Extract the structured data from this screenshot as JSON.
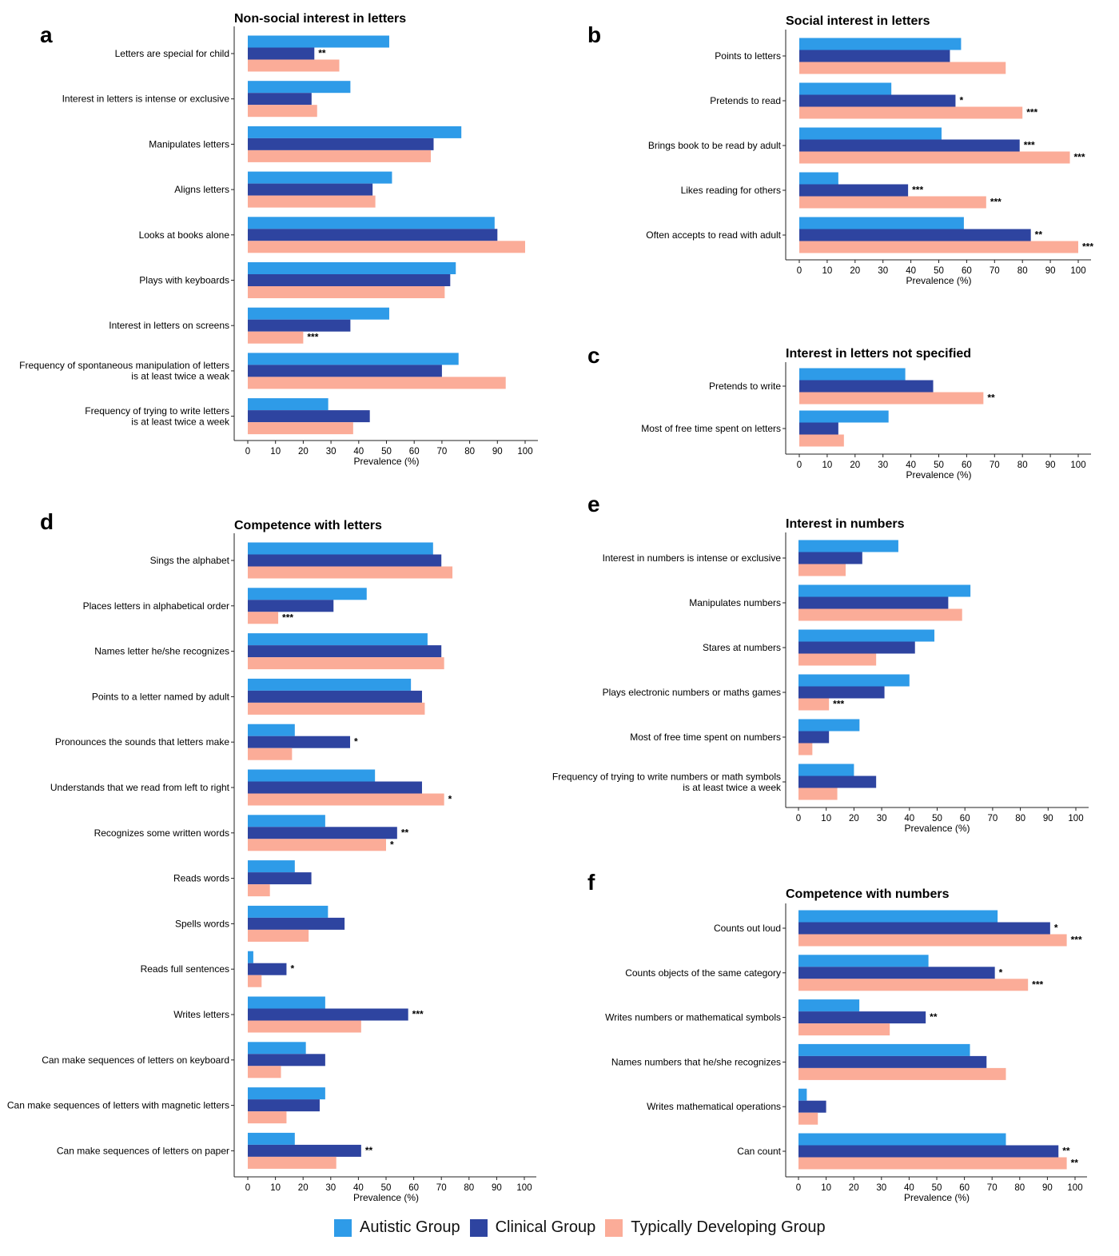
{
  "chart_data": [
    {
      "type": "bar",
      "panel": "a",
      "title": "Non-social interest in letters",
      "xlabel": "Prevalence (%)",
      "xlim": [
        0,
        100
      ],
      "xticks": [
        "0",
        "10",
        "20",
        "30",
        "40",
        "50",
        "60",
        "70",
        "80",
        "90",
        "100"
      ],
      "categories": [
        "Letters are special for child",
        "Interest in letters is intense or exclusive",
        "Manipulates letters",
        "Aligns letters",
        "Looks at books alone",
        "Plays with keyboards",
        "Interest in letters on screens",
        "Frequency of spontaneous manipulation of letters\nis at least twice a weak",
        "Frequency of trying to write letters\nis at least twice a week"
      ],
      "series": [
        {
          "name": "Autistic Group",
          "values": [
            51,
            37,
            77,
            52,
            89,
            75,
            51,
            76,
            29
          ],
          "sig": [
            "",
            "",
            "",
            "",
            "",
            "",
            "",
            "",
            ""
          ]
        },
        {
          "name": "Clinical Group",
          "values": [
            24,
            23,
            67,
            45,
            90,
            73,
            37,
            70,
            44
          ],
          "sig": [
            "**",
            "",
            "",
            "",
            "",
            "",
            "",
            "",
            ""
          ]
        },
        {
          "name": "Typically Developing Group",
          "values": [
            33,
            25,
            66,
            46,
            100,
            71,
            20,
            93,
            38
          ],
          "sig": [
            "",
            "",
            "",
            "",
            "",
            "",
            "***",
            "",
            ""
          ]
        }
      ]
    },
    {
      "type": "bar",
      "panel": "b",
      "title": "Social interest in letters",
      "xlabel": "Prevalence (%)",
      "xlim": [
        0,
        100
      ],
      "xticks": [
        "0",
        "10",
        "20",
        "30",
        "40",
        "50",
        "60",
        "70",
        "80",
        "90",
        "100"
      ],
      "categories": [
        "Points to letters",
        "Pretends to read",
        "Brings book to be read by adult",
        "Likes reading for others",
        "Often accepts to read with adult"
      ],
      "series": [
        {
          "name": "Autistic Group",
          "values": [
            58,
            33,
            51,
            14,
            59
          ],
          "sig": [
            "",
            "",
            "",
            "",
            ""
          ]
        },
        {
          "name": "Clinical Group",
          "values": [
            54,
            56,
            79,
            39,
            83
          ],
          "sig": [
            "",
            "*",
            "***",
            "***",
            "**"
          ]
        },
        {
          "name": "Typically Developing Group",
          "values": [
            74,
            80,
            97,
            67,
            100
          ],
          "sig": [
            "",
            "***",
            "***",
            "***",
            "***"
          ]
        }
      ]
    },
    {
      "type": "bar",
      "panel": "c",
      "title": "Interest in letters not specified",
      "xlabel": "Prevalence (%)",
      "xlim": [
        0,
        100
      ],
      "xticks": [
        "0",
        "10",
        "20",
        "30",
        "40",
        "50",
        "60",
        "70",
        "80",
        "90",
        "100"
      ],
      "categories": [
        "Pretends to write",
        "Most of free time spent on letters"
      ],
      "series": [
        {
          "name": "Autistic Group",
          "values": [
            38,
            32
          ],
          "sig": [
            "",
            ""
          ]
        },
        {
          "name": "Clinical Group",
          "values": [
            48,
            14
          ],
          "sig": [
            "",
            ""
          ]
        },
        {
          "name": "Typically Developing Group",
          "values": [
            66,
            16
          ],
          "sig": [
            "**",
            ""
          ]
        }
      ]
    },
    {
      "type": "bar",
      "panel": "d",
      "title": "Competence with letters",
      "xlabel": "Prevalence (%)",
      "xlim": [
        0,
        100
      ],
      "xticks": [
        "0",
        "10",
        "20",
        "30",
        "40",
        "50",
        "60",
        "70",
        "80",
        "90",
        "100"
      ],
      "categories": [
        "Sings the alphabet",
        "Places letters in alphabetical order",
        "Names letter he/she recognizes",
        "Points to a letter named by adult",
        "Pronounces the sounds that letters make",
        "Understands that we read from left to right",
        "Recognizes some written words",
        "Reads words",
        "Spells words",
        "Reads full sentences",
        "Writes letters",
        "Can make sequences of letters on keyboard",
        "Can make sequences of letters with magnetic letters",
        "Can make sequences of letters on paper"
      ],
      "series": [
        {
          "name": "Autistic Group",
          "values": [
            67,
            43,
            65,
            59,
            17,
            46,
            28,
            17,
            29,
            2,
            28,
            21,
            28,
            17
          ],
          "sig": [
            "",
            "",
            "",
            "",
            "",
            "",
            "",
            "",
            "",
            "",
            "",
            "",
            "",
            ""
          ]
        },
        {
          "name": "Clinical Group",
          "values": [
            70,
            31,
            70,
            63,
            37,
            63,
            54,
            23,
            35,
            14,
            58,
            28,
            26,
            41
          ],
          "sig": [
            "",
            "",
            "",
            "",
            "*",
            "",
            "**",
            "",
            "",
            "*",
            "***",
            "",
            "",
            "**"
          ]
        },
        {
          "name": "Typically Developing Group",
          "values": [
            74,
            11,
            71,
            64,
            16,
            71,
            50,
            8,
            22,
            5,
            41,
            12,
            14,
            32
          ],
          "sig": [
            "",
            "***",
            "",
            "",
            "",
            "*",
            "*",
            "",
            "",
            "",
            "",
            "",
            "",
            ""
          ]
        }
      ]
    },
    {
      "type": "bar",
      "panel": "e",
      "title": "Interest in numbers",
      "xlabel": "Prevalence (%)",
      "xlim": [
        0,
        100
      ],
      "xticks": [
        "0",
        "10",
        "20",
        "30",
        "40",
        "50",
        "60",
        "70",
        "80",
        "90",
        "100"
      ],
      "categories": [
        "Interest in numbers is intense or exclusive",
        "Manipulates numbers",
        "Stares at numbers",
        "Plays electronic numbers or maths games",
        "Most of free time spent on numbers",
        "Frequency of trying to write numbers or math symbols\nis at least twice a week"
      ],
      "series": [
        {
          "name": "Autistic Group",
          "values": [
            36,
            62,
            49,
            40,
            22,
            20
          ],
          "sig": [
            "",
            "",
            "",
            "",
            "",
            ""
          ]
        },
        {
          "name": "Clinical Group",
          "values": [
            23,
            54,
            42,
            31,
            11,
            28
          ],
          "sig": [
            "",
            "",
            "",
            "",
            "",
            ""
          ]
        },
        {
          "name": "Typically Developing Group",
          "values": [
            17,
            59,
            28,
            11,
            5,
            14
          ],
          "sig": [
            "",
            "",
            "",
            "***",
            "",
            ""
          ]
        }
      ]
    },
    {
      "type": "bar",
      "panel": "f",
      "title": "Competence with numbers",
      "xlabel": "Prevalence (%)",
      "xlim": [
        0,
        100
      ],
      "xticks": [
        "0",
        "10",
        "20",
        "30",
        "40",
        "50",
        "60",
        "70",
        "80",
        "90",
        "100"
      ],
      "categories": [
        "Counts out loud",
        "Counts objects of the same category",
        "Writes numbers or mathematical symbols",
        "Names numbers that he/she recognizes",
        "Writes mathematical operations",
        "Can count"
      ],
      "series": [
        {
          "name": "Autistic Group",
          "values": [
            72,
            47,
            22,
            62,
            3,
            75
          ],
          "sig": [
            "",
            "",
            "",
            "",
            "",
            ""
          ]
        },
        {
          "name": "Clinical Group",
          "values": [
            91,
            71,
            46,
            68,
            10,
            94
          ],
          "sig": [
            "*",
            "*",
            "**",
            "",
            "",
            "**"
          ]
        },
        {
          "name": "Typically Developing Group",
          "values": [
            97,
            83,
            33,
            75,
            7,
            97
          ],
          "sig": [
            "***",
            "***",
            "",
            "",
            "",
            "**"
          ]
        }
      ]
    }
  ],
  "legend": {
    "items": [
      {
        "label": "Autistic Group",
        "color": "#2e9be8"
      },
      {
        "label": "Clinical Group",
        "color": "#2e44a0"
      },
      {
        "label": "Typically Developing Group",
        "color": "#fbac98"
      }
    ]
  }
}
